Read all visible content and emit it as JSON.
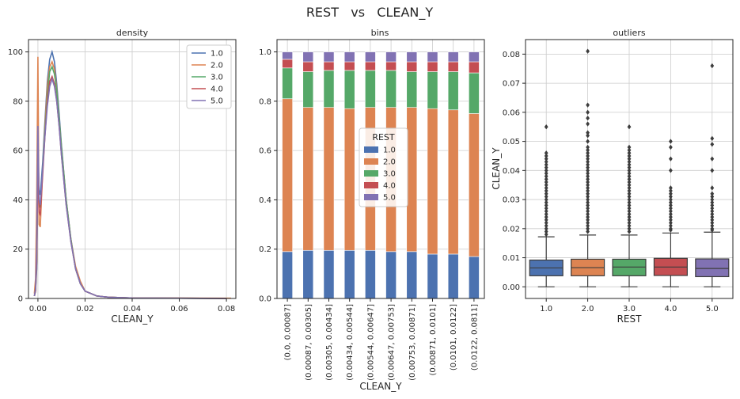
{
  "suptitle": "REST   vs   CLEAN_Y",
  "colors": {
    "1.0": "#4c72b0",
    "2.0": "#dd8452",
    "3.0": "#55a868",
    "4.0": "#c44e52",
    "5.0": "#8172b3"
  },
  "chart_data": [
    {
      "type": "line",
      "title": "density",
      "xlabel": "CLEAN_Y",
      "ylabel": "",
      "xlim": [
        -0.004,
        0.084
      ],
      "ylim": [
        0,
        105
      ],
      "xticks": [
        "0.00",
        "0.02",
        "0.04",
        "0.06",
        "0.08"
      ],
      "yticks": [
        "0",
        "20",
        "40",
        "60",
        "80",
        "100"
      ],
      "grid": true,
      "legend": "top-right",
      "series": [
        {
          "name": "1.0",
          "x": [
            -0.0015,
            -0.001,
            -0.0005,
            0,
            0.0005,
            0.001,
            0.002,
            0.003,
            0.004,
            0.005,
            0.006,
            0.007,
            0.008,
            0.009,
            0.01,
            0.012,
            0.014,
            0.016,
            0.018,
            0.02,
            0.025,
            0.03,
            0.04,
            0.06,
            0.08
          ],
          "y": [
            1,
            3,
            12,
            60,
            44,
            42,
            55,
            72,
            88,
            97,
            100,
            96,
            87,
            75,
            62,
            40,
            24,
            12,
            6,
            3,
            1,
            0.5,
            0.2,
            0.1,
            0
          ]
        },
        {
          "name": "2.0",
          "x": [
            -0.0015,
            -0.001,
            -0.0005,
            0,
            0.0005,
            0.001,
            0.002,
            0.003,
            0.004,
            0.005,
            0.006,
            0.007,
            0.008,
            0.009,
            0.01,
            0.012,
            0.014,
            0.016,
            0.018,
            0.02,
            0.025,
            0.03,
            0.04,
            0.06,
            0.082
          ],
          "y": [
            2,
            8,
            40,
            98,
            30,
            29,
            52,
            70,
            86,
            94,
            96,
            93,
            85,
            73,
            61,
            40,
            24,
            13,
            7,
            3,
            1,
            0.5,
            0.2,
            0.2,
            0.1
          ]
        },
        {
          "name": "3.0",
          "x": [
            -0.0015,
            -0.001,
            -0.0005,
            0,
            0.0005,
            0.001,
            0.002,
            0.003,
            0.004,
            0.005,
            0.006,
            0.007,
            0.008,
            0.009,
            0.01,
            0.012,
            0.014,
            0.016,
            0.018,
            0.02,
            0.025,
            0.03,
            0.04,
            0.06,
            0.08
          ],
          "y": [
            1,
            3,
            15,
            57,
            38,
            37,
            52,
            68,
            82,
            92,
            94,
            91,
            84,
            73,
            61,
            40,
            24,
            12,
            6,
            3,
            1,
            0.5,
            0.2,
            0.1,
            0
          ]
        },
        {
          "name": "4.0",
          "x": [
            -0.0015,
            -0.001,
            -0.0005,
            0,
            0.0005,
            0.001,
            0.002,
            0.003,
            0.004,
            0.005,
            0.006,
            0.007,
            0.008,
            0.009,
            0.01,
            0.012,
            0.014,
            0.016,
            0.018,
            0.02,
            0.025,
            0.03,
            0.04,
            0.06,
            0.08
          ],
          "y": [
            1,
            3,
            15,
            55,
            35,
            34,
            50,
            66,
            80,
            88,
            90,
            87,
            80,
            70,
            58,
            38,
            23,
            12,
            6,
            3,
            1,
            0.5,
            0.2,
            0.1,
            0
          ]
        },
        {
          "name": "5.0",
          "x": [
            -0.0015,
            -0.001,
            -0.0005,
            0,
            0.0005,
            0.001,
            0.002,
            0.003,
            0.004,
            0.005,
            0.006,
            0.007,
            0.008,
            0.009,
            0.01,
            0.012,
            0.014,
            0.016,
            0.018,
            0.02,
            0.025,
            0.03,
            0.04,
            0.06,
            0.08
          ],
          "y": [
            1,
            4,
            20,
            70,
            40,
            38,
            52,
            66,
            78,
            86,
            89,
            86,
            80,
            70,
            58,
            38,
            23,
            12,
            6,
            3,
            1,
            0.5,
            0.2,
            0.1,
            0
          ]
        }
      ]
    },
    {
      "type": "bar",
      "stacked": true,
      "title": "bins",
      "xlabel": "CLEAN_Y",
      "ylabel": "",
      "ylim": [
        0,
        1.05
      ],
      "yticks": [
        "0.0",
        "0.2",
        "0.4",
        "0.6",
        "0.8",
        "1.0"
      ],
      "grid": true,
      "legend_title": "REST",
      "legend": "center",
      "categories": [
        "(0.0, 0.00087]",
        "(0.00087, 0.00305]",
        "(0.00305, 0.00434]",
        "(0.00434, 0.00544]",
        "(0.00544, 0.00647]",
        "(0.00647, 0.00753]",
        "(0.00753, 0.00871]",
        "(0.00871, 0.0101]",
        "(0.0101, 0.0122]",
        "(0.0122, 0.0811]"
      ],
      "series": [
        {
          "name": "1.0",
          "values": [
            0.19,
            0.195,
            0.195,
            0.195,
            0.195,
            0.19,
            0.19,
            0.18,
            0.18,
            0.17
          ]
        },
        {
          "name": "2.0",
          "values": [
            0.62,
            0.58,
            0.58,
            0.575,
            0.58,
            0.585,
            0.585,
            0.59,
            0.585,
            0.58
          ]
        },
        {
          "name": "3.0",
          "values": [
            0.125,
            0.145,
            0.15,
            0.155,
            0.15,
            0.15,
            0.145,
            0.15,
            0.155,
            0.165
          ]
        },
        {
          "name": "4.0",
          "values": [
            0.035,
            0.04,
            0.035,
            0.035,
            0.035,
            0.035,
            0.04,
            0.04,
            0.04,
            0.045
          ]
        },
        {
          "name": "5.0",
          "values": [
            0.03,
            0.04,
            0.04,
            0.04,
            0.04,
            0.04,
            0.04,
            0.04,
            0.04,
            0.04
          ]
        }
      ]
    },
    {
      "type": "box",
      "title": "outliers",
      "xlabel": "REST",
      "ylabel": "CLEAN_Y",
      "ylim": [
        -0.004,
        0.085
      ],
      "yticks": [
        "0.00",
        "0.01",
        "0.02",
        "0.03",
        "0.04",
        "0.05",
        "0.06",
        "0.07",
        "0.08"
      ],
      "grid": true,
      "categories": [
        "1.0",
        "2.0",
        "3.0",
        "4.0",
        "5.0"
      ],
      "boxes": [
        {
          "min": 0.0,
          "q1": 0.0038,
          "median": 0.0065,
          "q3": 0.0092,
          "max": 0.0172,
          "outliers": [
            0.018,
            0.019,
            0.02,
            0.021,
            0.022,
            0.023,
            0.024,
            0.025,
            0.026,
            0.027,
            0.028,
            0.029,
            0.03,
            0.031,
            0.032,
            0.033,
            0.034,
            0.035,
            0.036,
            0.037,
            0.038,
            0.039,
            0.04,
            0.041,
            0.042,
            0.043,
            0.044,
            0.045,
            0.046,
            0.055
          ]
        },
        {
          "min": 0.0,
          "q1": 0.0038,
          "median": 0.0066,
          "q3": 0.0095,
          "max": 0.0178,
          "outliers": [
            0.019,
            0.02,
            0.021,
            0.022,
            0.023,
            0.024,
            0.025,
            0.026,
            0.027,
            0.028,
            0.029,
            0.03,
            0.031,
            0.032,
            0.033,
            0.034,
            0.035,
            0.036,
            0.037,
            0.038,
            0.039,
            0.04,
            0.041,
            0.042,
            0.043,
            0.044,
            0.045,
            0.046,
            0.047,
            0.048,
            0.05,
            0.052,
            0.053,
            0.056,
            0.058,
            0.06,
            0.0625,
            0.081
          ]
        },
        {
          "min": 0.0,
          "q1": 0.0038,
          "median": 0.0068,
          "q3": 0.0095,
          "max": 0.0178,
          "outliers": [
            0.019,
            0.02,
            0.021,
            0.022,
            0.023,
            0.024,
            0.025,
            0.026,
            0.027,
            0.028,
            0.029,
            0.03,
            0.031,
            0.032,
            0.033,
            0.034,
            0.035,
            0.036,
            0.037,
            0.038,
            0.039,
            0.04,
            0.041,
            0.042,
            0.043,
            0.044,
            0.045,
            0.046,
            0.047,
            0.048,
            0.055
          ]
        },
        {
          "min": 0.0,
          "q1": 0.0039,
          "median": 0.0068,
          "q3": 0.0098,
          "max": 0.0185,
          "outliers": [
            0.0195,
            0.02,
            0.021,
            0.022,
            0.023,
            0.024,
            0.025,
            0.026,
            0.027,
            0.028,
            0.029,
            0.03,
            0.031,
            0.032,
            0.033,
            0.034,
            0.04,
            0.044,
            0.048,
            0.05
          ]
        },
        {
          "min": 0.0,
          "q1": 0.0035,
          "median": 0.0063,
          "q3": 0.0096,
          "max": 0.0188,
          "outliers": [
            0.0195,
            0.02,
            0.021,
            0.022,
            0.023,
            0.024,
            0.025,
            0.026,
            0.027,
            0.028,
            0.029,
            0.03,
            0.031,
            0.032,
            0.034,
            0.04,
            0.044,
            0.049,
            0.051,
            0.076
          ]
        }
      ]
    }
  ]
}
